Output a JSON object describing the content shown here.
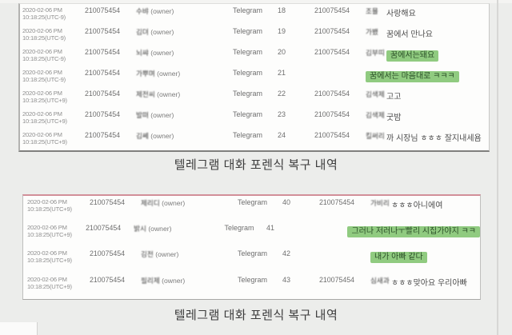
{
  "document": {
    "type_label": "telegram-forensic-recovery-scan",
    "highlight_color": "#90cb80",
    "panel_top_accent_color": "#d28f99",
    "background_color": "#ecedeb"
  },
  "captions": {
    "table1": "텔레그램 대화 포렌식 복구 내역",
    "table2": "텔레그램 대화 포렌식 복구 내역"
  },
  "tables": [
    {
      "rows": [
        {
          "date": "2020-02-06 PM",
          "time": "10:18:25(UTC-9)",
          "number": "210075454",
          "owner_name": "수뱌",
          "owner_label": "(owner)",
          "app": "Telegram",
          "msg_no": "18",
          "number2": "210075454",
          "sender_name": "조묠",
          "message": "사랑해요",
          "highlighted": false
        },
        {
          "date": "2020-02-06 PM",
          "time": "10:18:25(UTC-9)",
          "number": "210075454",
          "owner_name": "김뎌",
          "owner_label": "(owner)",
          "app": "Telegram",
          "msg_no": "19",
          "number2": "210075454",
          "sender_name": "가뵀",
          "message": "꿈에서 만나요",
          "highlighted": false
        },
        {
          "date": "2020-02-06 PM",
          "time": "10:18:25(UTC-9)",
          "number": "210075454",
          "owner_name": "뇌쌰",
          "owner_label": "(owner)",
          "app": "Telegram",
          "msg_no": "20",
          "number2": "210075454",
          "sender_name": "김부띠",
          "message": "꿈에서는돼요",
          "highlighted": true
        },
        {
          "date": "2020-02-06 PM",
          "time": "10:18:25(UTC-9)",
          "number": "210075454",
          "owner_name": "가뿌며",
          "owner_label": "(owner)",
          "app": "Telegram",
          "msg_no": "21",
          "number2": "",
          "sender_name": "",
          "message": "꿈에서는 마음대로 ㅋㅋㅋ",
          "highlighted": true
        },
        {
          "date": "2020-02-06 PM",
          "time": "10:18:25(UTC+9)",
          "number": "210075454",
          "owner_name": "제전씨",
          "owner_label": "(owner)",
          "app": "Telegram",
          "msg_no": "22",
          "number2": "210075454",
          "sender_name": "김색제",
          "message": "고고",
          "highlighted": false
        },
        {
          "date": "2020-02-06 PM",
          "time": "10:18:25(UTC+9)",
          "number": "210075454",
          "owner_name": "발뗘",
          "owner_label": "(owner)",
          "app": "Telegram",
          "msg_no": "23",
          "number2": "210075454",
          "sender_name": "김색제",
          "message": "굿밤",
          "highlighted": false
        },
        {
          "date": "2020-02-06 PM",
          "time": "10:18:25(UTC+9)",
          "number": "210075454",
          "owner_name": "김쎼",
          "owner_label": "(owner)",
          "app": "Telegram",
          "msg_no": "24",
          "number2": "210075454",
          "sender_name": "킬써리",
          "message": "까 시장님 ㅎㅎㅎ 잘지내세욤",
          "highlighted": false
        }
      ]
    },
    {
      "rows": [
        {
          "date": "2020-02-06 PM",
          "time": "10:18:25(UTC+9)",
          "number": "210075454",
          "owner_name": "제리디",
          "owner_label": "(owner)",
          "app": "Telegram",
          "msg_no": "40",
          "number2": "210075454",
          "sender_name": "가비리",
          "message": "ㅎㅎㅎ아니에여",
          "highlighted": false
        },
        {
          "date": "2020-02-06 PM",
          "time": "10:18:25(UTC+9)",
          "number": "210075454",
          "owner_name": "밝시",
          "owner_label": "(owner)",
          "app": "Telegram",
          "msg_no": "41",
          "number2": "",
          "sender_name": "",
          "message": "그러나 저러나ㅜ빨리 시집가야지 ㅋㅋ",
          "highlighted": true
        },
        {
          "date": "2020-02-06 PM",
          "time": "10:18:25(UTC+9)",
          "number": "210075454",
          "owner_name": "깅전",
          "owner_label": "(owner)",
          "app": "Telegram",
          "msg_no": "42",
          "number2": "",
          "sender_name": "",
          "message": "내가 아빠 같다",
          "highlighted": true
        },
        {
          "date": "2020-02-06 PM",
          "time": "10:18:25(UTC+9)",
          "number": "210075454",
          "owner_name": "필리제",
          "owner_label": "(owner)",
          "app": "Telegram",
          "msg_no": "43",
          "number2": "210075454",
          "sender_name": "심새과",
          "message": "ㅎㅎㅎ맞아요 우리아빠",
          "highlighted": false
        }
      ]
    }
  ]
}
